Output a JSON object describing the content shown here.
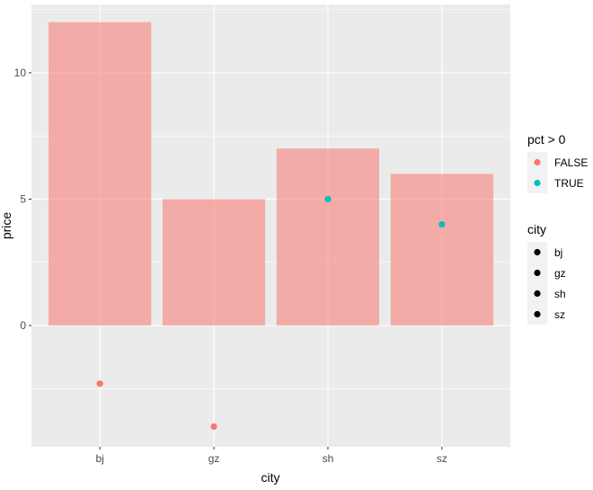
{
  "chart_data": {
    "type": "bar",
    "categories": [
      "bj",
      "gz",
      "sh",
      "sz"
    ],
    "bar_values": [
      12,
      5,
      7,
      6
    ],
    "bar_color": "#F8766D",
    "points": [
      {
        "x": "bj",
        "y": -2.3,
        "pct_positive": "FALSE"
      },
      {
        "x": "gz",
        "y": -4,
        "pct_positive": "FALSE"
      },
      {
        "x": "sh",
        "y": 5,
        "pct_positive": "TRUE"
      },
      {
        "x": "sz",
        "y": 4,
        "pct_positive": "TRUE"
      }
    ],
    "xlabel": "city",
    "ylabel": "price",
    "ylim": [
      -4.8,
      12.7
    ],
    "y_ticks": [
      0,
      5,
      10
    ],
    "grid": true,
    "panel_background": "#EBEBEB",
    "legend_placement": "right",
    "legends": [
      {
        "title": "pct > 0",
        "items": [
          {
            "label": "FALSE",
            "color": "#F8766D"
          },
          {
            "label": "TRUE",
            "color": "#00BFC4"
          }
        ]
      },
      {
        "title": "city",
        "items": [
          {
            "label": "bj",
            "color": "#000000"
          },
          {
            "label": "gz",
            "color": "#000000"
          },
          {
            "label": "sh",
            "color": "#000000"
          },
          {
            "label": "sz",
            "color": "#000000"
          }
        ]
      }
    ]
  }
}
